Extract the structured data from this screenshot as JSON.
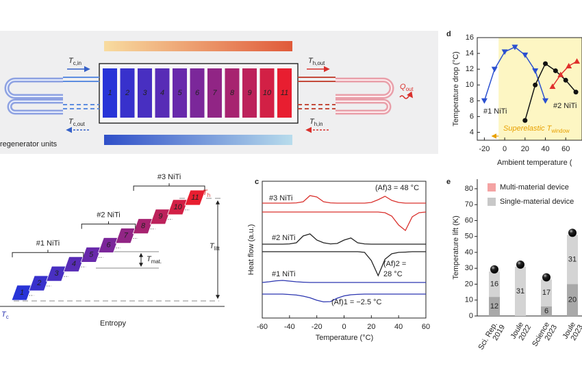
{
  "diagram_a": {
    "units": [
      "1",
      "2",
      "3",
      "4",
      "5",
      "6",
      "7",
      "8",
      "9",
      "10",
      "11"
    ],
    "t_c_in": {
      "main": "T",
      "sub": "c,in"
    },
    "t_c_out": {
      "main": "T",
      "sub": "c,out"
    },
    "t_h_out": {
      "main": "T",
      "sub": "h,out"
    },
    "t_h_in": {
      "main": "T",
      "sub": "h,in"
    },
    "q_out": {
      "main": "Q",
      "sub": "out"
    },
    "caption": "regenerator units"
  },
  "diagram_b": {
    "groups": [
      "#1 NiTi",
      "#2 NiTi",
      "#3 NiTi"
    ],
    "t_h": {
      "main": "T",
      "sub": "h"
    },
    "t_c": {
      "main": "T",
      "sub": "c"
    },
    "t_lift": {
      "main": "T",
      "sub": "lift"
    },
    "t_mat": {
      "main": "T",
      "sub": "mat."
    },
    "x_label": "Entropy"
  },
  "chart_data": [
    {
      "type": "line",
      "panel": "c",
      "x_label": "Temperature (°C)",
      "y_label": "Heat flow (a.u.)",
      "xlim": [
        -60,
        60
      ],
      "xticks": [
        -60,
        -40,
        -20,
        0,
        20,
        40,
        60
      ],
      "ylim": [
        0,
        10
      ],
      "x": [
        -60,
        -55,
        -50,
        -45,
        -40,
        -35,
        -30,
        -25,
        -20,
        -15,
        -10,
        -5,
        0,
        5,
        10,
        15,
        20,
        25,
        30,
        35,
        40,
        45,
        50,
        55,
        60
      ],
      "series": [
        {
          "name": "#3 NiTi",
          "color": "#d9302c",
          "values": [
            8.4,
            8.4,
            8.4,
            8.4,
            8.4,
            8.42,
            8.5,
            8.95,
            8.85,
            8.5,
            8.42,
            8.4,
            8.4,
            8.4,
            8.4,
            8.4,
            8.45,
            8.65,
            8.9,
            8.6,
            8.45,
            8.4,
            8.4,
            8.4,
            8.4
          ]
        },
        {
          "name": null,
          "color": "#d9302c",
          "values": [
            7.75,
            7.75,
            7.75,
            7.75,
            7.75,
            7.75,
            7.75,
            7.75,
            7.75,
            7.75,
            7.75,
            7.75,
            7.75,
            7.75,
            7.75,
            7.75,
            7.75,
            7.75,
            7.7,
            7.45,
            6.8,
            6.4,
            7.4,
            7.7,
            7.75
          ]
        },
        {
          "name": "#2 NiTi",
          "color": "#222222",
          "values": [
            5.4,
            5.4,
            5.4,
            5.4,
            5.42,
            5.5,
            6.0,
            6.15,
            5.7,
            5.5,
            5.42,
            5.45,
            5.7,
            5.85,
            5.5,
            5.42,
            5.4,
            5.4,
            5.4,
            5.4,
            5.4,
            5.4,
            5.4,
            5.4,
            5.4
          ]
        },
        {
          "name": null,
          "color": "#222222",
          "values": [
            4.85,
            4.85,
            4.85,
            4.85,
            4.85,
            4.85,
            4.85,
            4.85,
            4.85,
            4.85,
            4.85,
            4.85,
            4.85,
            4.85,
            4.85,
            4.8,
            4.2,
            3.1,
            4.3,
            4.7,
            4.8,
            4.82,
            4.85,
            4.85,
            4.85
          ]
        },
        {
          "name": "#1 NiTi",
          "color": "#2b35b0",
          "values": [
            2.6,
            2.65,
            2.72,
            2.75,
            2.7,
            2.65,
            2.62,
            2.6,
            2.6,
            2.6,
            2.6,
            2.6,
            2.6,
            2.6,
            2.6,
            2.6,
            2.6,
            2.6,
            2.6,
            2.6,
            2.6,
            2.6,
            2.6,
            2.6,
            2.6
          ]
        },
        {
          "name": null,
          "color": "#2b35b0",
          "values": [
            1.75,
            1.75,
            1.75,
            1.75,
            1.72,
            1.68,
            1.6,
            1.48,
            1.3,
            1.18,
            1.2,
            1.45,
            1.62,
            1.7,
            1.73,
            1.75,
            1.75,
            1.75,
            1.75,
            1.75,
            1.75,
            1.75,
            1.75,
            1.75,
            1.75
          ]
        }
      ],
      "annotations": [
        {
          "lines": [
            "(Af)3 = 48 °C"
          ],
          "color": "#d9302c"
        },
        {
          "lines": [
            "(Af)2 =",
            "28 °C"
          ],
          "color": "#222222"
        },
        {
          "lines": [
            "(Af)1 = −2.5 °C"
          ],
          "color": "#2b35b0"
        }
      ]
    },
    {
      "type": "line",
      "panel": "d",
      "x_label": "Ambient temperature (",
      "y_label": "Temperature drop (°C)",
      "xlim": [
        -27,
        76
      ],
      "xticks": [
        -20,
        0,
        20,
        40,
        60
      ],
      "ylim": [
        3,
        16
      ],
      "yticks": [
        4,
        6,
        8,
        10,
        12,
        14,
        16
      ],
      "band_start": -6,
      "band_label": {
        "main": "Superelastic T",
        "sub": "window"
      },
      "series": [
        {
          "name": "#1 NiTi",
          "color": "#2b50d0",
          "marker": "triangle-down",
          "x": [
            -20,
            -10,
            0,
            10,
            20,
            30,
            40
          ],
          "values": [
            8.0,
            12.0,
            14.2,
            14.8,
            13.8,
            11.8,
            8.0
          ]
        },
        {
          "name": "#2 NiTi",
          "color": "#111111",
          "marker": "circle",
          "x": [
            20,
            30,
            40,
            50,
            60,
            70
          ],
          "values": [
            5.5,
            10.0,
            12.7,
            11.8,
            10.6,
            9.1
          ]
        },
        {
          "name": null,
          "color": "#e0302c",
          "marker": "triangle-up",
          "x": [
            47,
            55,
            63,
            71
          ],
          "values": [
            9.8,
            11.3,
            12.4,
            13.0
          ]
        }
      ]
    },
    {
      "type": "bar",
      "panel": "e",
      "y_label": "Temperature lift (K)",
      "ylim": [
        0,
        86
      ],
      "yticks": [
        0,
        10,
        20,
        30,
        40,
        50,
        60,
        70,
        80
      ],
      "stacked": true,
      "categories": [
        [
          "Sci. Rep.",
          "2019"
        ],
        [
          "Joule",
          "2022"
        ],
        [
          "Science",
          "2023"
        ],
        [
          "Joule",
          "2023"
        ]
      ],
      "series": [
        {
          "name": null,
          "color": "#a9a9a9",
          "values": [
            12,
            null,
            6,
            20
          ]
        },
        {
          "name": null,
          "color": "#d4d4d4",
          "values": [
            16,
            31,
            17,
            31
          ]
        }
      ],
      "legend": [
        {
          "label": "Multi-material device",
          "color": "#f4a3a3"
        },
        {
          "label": "Single-material device",
          "color": "#c8c8c8"
        }
      ]
    }
  ]
}
